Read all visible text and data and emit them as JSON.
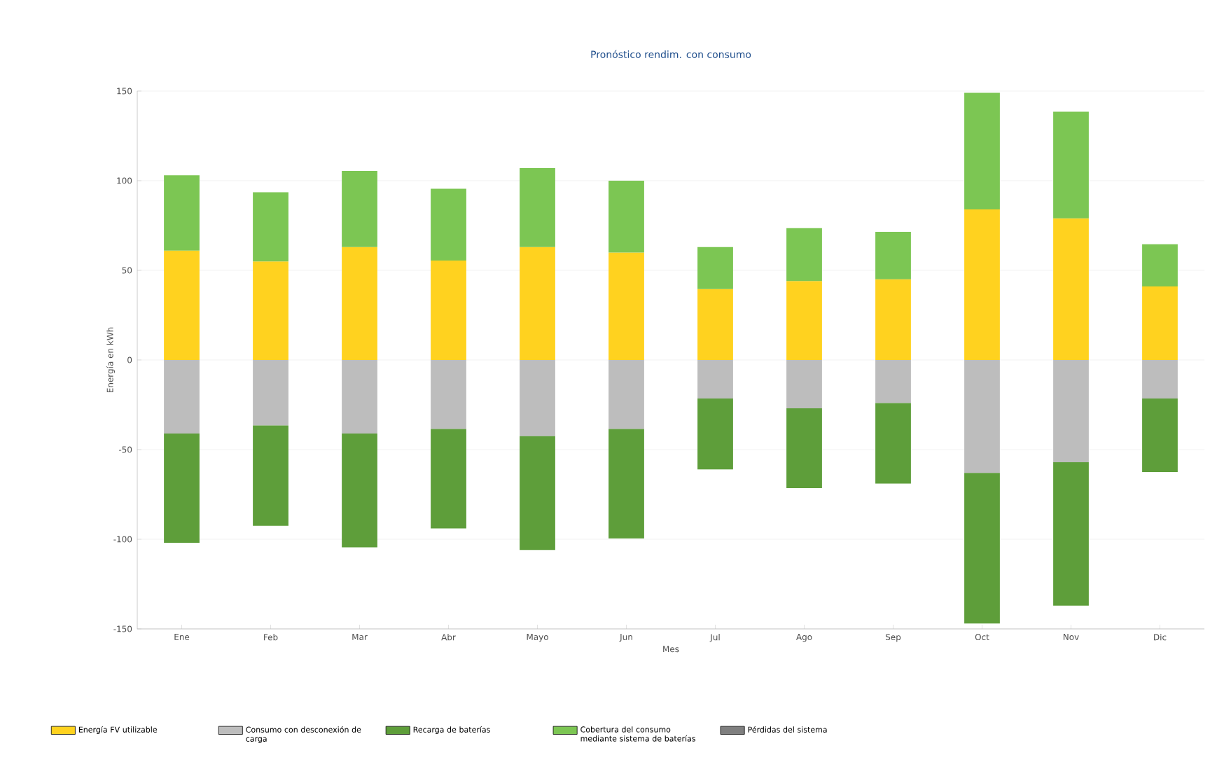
{
  "chart_data": {
    "type": "bar",
    "stacked": true,
    "title": "Pronóstico rendim. con consumo",
    "xlabel": "Mes",
    "ylabel": "Energía en kWh",
    "categories": [
      "Ene",
      "Feb",
      "Mar",
      "Abr",
      "Mayo",
      "Jun",
      "Jul",
      "Ago",
      "Sep",
      "Oct",
      "Nov",
      "Dic"
    ],
    "series": [
      {
        "name": "Energía FV utilizable",
        "color": "#ffd21f",
        "values": [
          61,
          55,
          63,
          55.5,
          63,
          60,
          39.5,
          44,
          45,
          84,
          79,
          41
        ]
      },
      {
        "name": "Consumo con desconexión de carga",
        "color": "#bdbdbd",
        "values": [
          -41,
          -36.5,
          -41,
          -38.5,
          -42.5,
          -38.5,
          -21.5,
          -27,
          -24,
          -63,
          -57,
          -21.5
        ]
      },
      {
        "name": "Recarga de baterías",
        "color": "#5e9e3a",
        "values": [
          -61,
          -56,
          -63.5,
          -55.5,
          -63.5,
          -61,
          -39.5,
          -44.5,
          -45,
          -84,
          -80,
          -41
        ]
      },
      {
        "name": "Cobertura del consumo mediante sistema de baterías",
        "color": "#7cc653",
        "values": [
          42,
          38.5,
          42.5,
          40,
          44,
          40,
          23.5,
          29.5,
          26.5,
          65,
          59.5,
          23.5
        ]
      },
      {
        "name": "Pérdidas del sistema",
        "color": "#7f7f7f",
        "values": [
          null,
          null,
          null,
          null,
          null,
          null,
          null,
          null,
          null,
          null,
          null,
          null
        ]
      }
    ],
    "ylim": [
      -150,
      150
    ],
    "yticks": [
      -150,
      -100,
      -50,
      0,
      50,
      100,
      150
    ],
    "grid": "y",
    "legend": "bottom"
  }
}
